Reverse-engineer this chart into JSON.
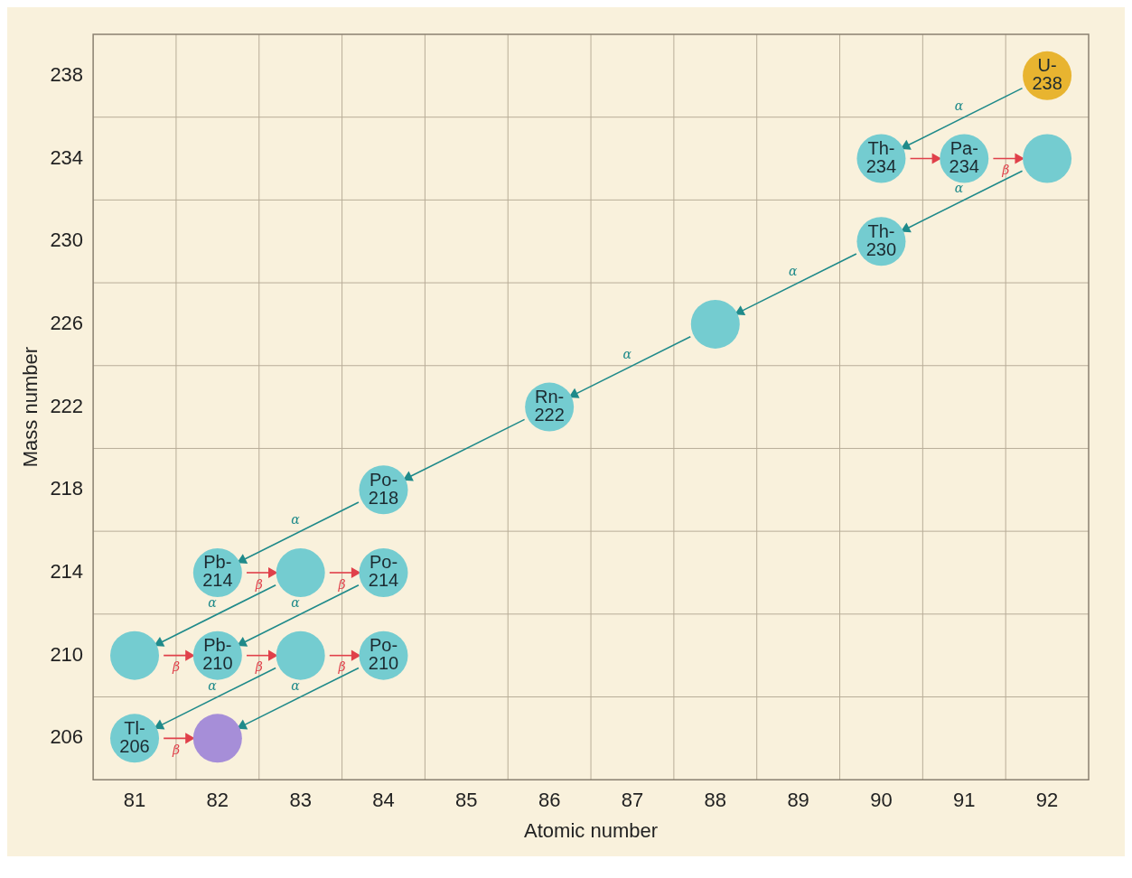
{
  "chart_data": {
    "type": "scatter",
    "xlabel": "Atomic number",
    "ylabel": "Mass number",
    "xlim": [
      80.5,
      92.5
    ],
    "xticks": [
      81,
      82,
      83,
      84,
      85,
      86,
      87,
      88,
      89,
      90,
      91,
      92
    ],
    "ylim": [
      204,
      240
    ],
    "yticks": [
      206,
      210,
      214,
      218,
      222,
      226,
      230,
      234,
      238
    ],
    "grid": true,
    "legend": false,
    "marker": "triangle",
    "series": [
      {
        "type": "line",
        "color": "#1f8a8a",
        "x": [
          91.7,
          90.3
        ],
        "values": [
          237.4,
          234.6
        ]
      },
      {
        "type": "line",
        "color": "#e0404a",
        "x": [
          90.35,
          90.65
        ],
        "values": [
          234,
          234
        ]
      },
      {
        "type": "line",
        "color": "#e0404a",
        "x": [
          91.35,
          91.65
        ],
        "values": [
          234,
          234
        ]
      },
      {
        "type": "line",
        "color": "#1f8a8a",
        "x": [
          91.7,
          90.3
        ],
        "values": [
          233.4,
          230.6
        ]
      },
      {
        "type": "line",
        "color": "#1f8a8a",
        "x": [
          89.7,
          88.3
        ],
        "values": [
          229.4,
          226.6
        ]
      },
      {
        "type": "line",
        "color": "#1f8a8a",
        "x": [
          87.7,
          86.3
        ],
        "values": [
          225.4,
          222.6
        ]
      },
      {
        "type": "line",
        "color": "#1f8a8a",
        "x": [
          85.7,
          84.3
        ],
        "values": [
          221.4,
          218.6
        ]
      },
      {
        "type": "line",
        "color": "#1f8a8a",
        "x": [
          83.7,
          82.3
        ],
        "values": [
          217.4,
          214.6
        ]
      },
      {
        "type": "line",
        "color": "#e0404a",
        "x": [
          82.35,
          82.65
        ],
        "values": [
          214,
          214
        ]
      },
      {
        "type": "line",
        "color": "#e0404a",
        "x": [
          83.35,
          83.65
        ],
        "values": [
          214,
          214
        ]
      },
      {
        "type": "line",
        "color": "#1f8a8a",
        "x": [
          82.7,
          81.3
        ],
        "values": [
          213.4,
          210.6
        ]
      },
      {
        "type": "line",
        "color": "#1f8a8a",
        "x": [
          83.7,
          82.3
        ],
        "values": [
          213.4,
          210.6
        ]
      },
      {
        "type": "line",
        "color": "#e0404a",
        "x": [
          81.35,
          81.65
        ],
        "values": [
          210,
          210
        ]
      },
      {
        "type": "line",
        "color": "#e0404a",
        "x": [
          82.35,
          82.65
        ],
        "values": [
          210,
          210
        ]
      },
      {
        "type": "line",
        "color": "#e0404a",
        "x": [
          83.35,
          83.65
        ],
        "values": [
          210,
          210
        ]
      },
      {
        "type": "line",
        "color": "#1f8a8a",
        "x": [
          82.7,
          81.3
        ],
        "values": [
          209.4,
          206.6
        ]
      },
      {
        "type": "line",
        "color": "#1f8a8a",
        "x": [
          83.7,
          82.3
        ],
        "values": [
          209.4,
          206.6
        ]
      },
      {
        "type": "line",
        "color": "#e0404a",
        "x": [
          81.35,
          81.65
        ],
        "values": [
          206,
          206
        ]
      },
      {
        "type": "scatter",
        "marker": "circle",
        "x": [
          92,
          90,
          91,
          92,
          90,
          88,
          86,
          84,
          82,
          83,
          84,
          81,
          82,
          83,
          84,
          81,
          82
        ],
        "values": [
          238,
          234,
          234,
          234,
          230,
          226,
          222,
          218,
          214,
          214,
          214,
          210,
          210,
          210,
          210,
          206,
          206
        ],
        "colors": [
          "#e8b430",
          "#74ccd0",
          "#74ccd0",
          "#74ccd0",
          "#74ccd0",
          "#74ccd0",
          "#74ccd0",
          "#74ccd0",
          "#74ccd0",
          "#74ccd0",
          "#74ccd0",
          "#74ccd0",
          "#74ccd0",
          "#74ccd0",
          "#74ccd0",
          "#74ccd0",
          "#a68ed8"
        ],
        "value_labels": [
          "U-238",
          "Th-234",
          "Pa-234",
          null,
          "Th-230",
          null,
          "Rn-222",
          "Po-218",
          "Pb-214",
          null,
          "Po-214",
          null,
          "Pb-210",
          null,
          "Po-210",
          "Tl-206",
          null
        ]
      }
    ],
    "annotations": [
      {
        "text": "α",
        "x": 91,
        "y": 236
      },
      {
        "text": "β",
        "x": 91.5,
        "y": 234
      },
      {
        "text": "α",
        "x": 91,
        "y": 232
      },
      {
        "text": "α",
        "x": 89,
        "y": 228
      },
      {
        "text": "α",
        "x": 87,
        "y": 224
      },
      {
        "text": "α",
        "x": 83,
        "y": 216
      },
      {
        "text": "β",
        "x": 82.5,
        "y": 214
      },
      {
        "text": "β",
        "x": 83.5,
        "y": 214
      },
      {
        "text": "α",
        "x": 82,
        "y": 212
      },
      {
        "text": "α",
        "x": 83,
        "y": 212
      },
      {
        "text": "β",
        "x": 81.5,
        "y": 210
      },
      {
        "text": "β",
        "x": 82.5,
        "y": 210
      },
      {
        "text": "β",
        "x": 83.5,
        "y": 210
      },
      {
        "text": "α",
        "x": 82,
        "y": 208
      },
      {
        "text": "α",
        "x": 83,
        "y": 208
      },
      {
        "text": "β",
        "x": 81.5,
        "y": 206
      }
    ]
  }
}
